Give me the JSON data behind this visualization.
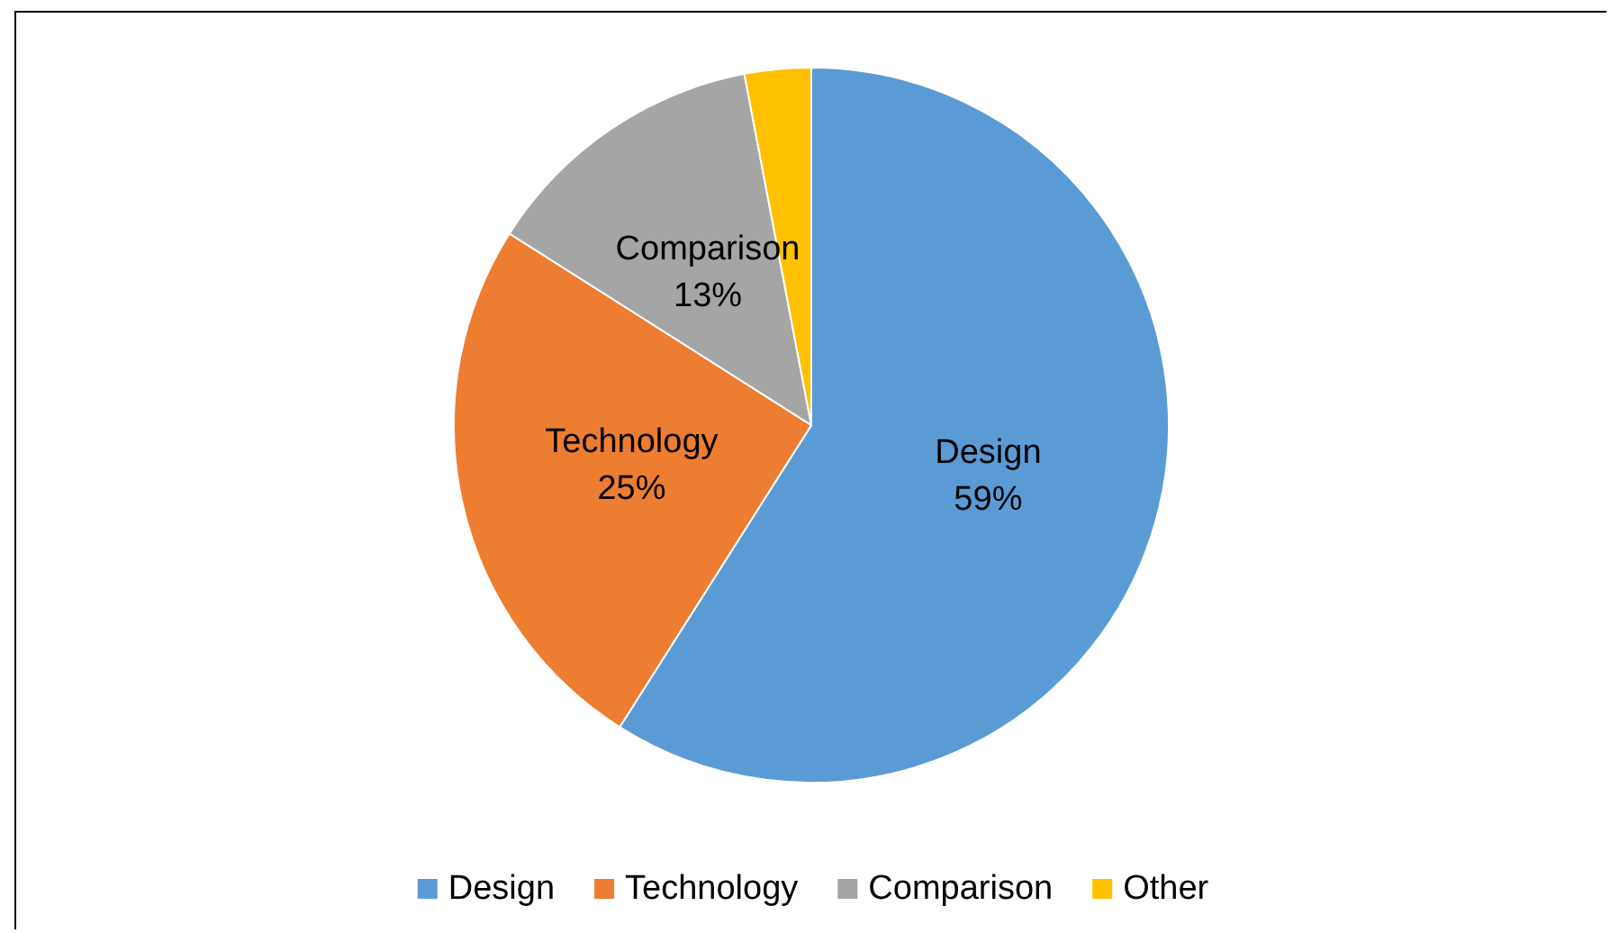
{
  "chart_data": {
    "type": "pie",
    "categories": [
      "Design",
      "Technology",
      "Comparison",
      "Other"
    ],
    "values": [
      59,
      25,
      13,
      3
    ],
    "colors": [
      "#5b9bd5",
      "#ed7d31",
      "#a5a5a5",
      "#ffc000"
    ],
    "value_labels": [
      "59%",
      "25%",
      "13%",
      null
    ],
    "legend": "bottom"
  }
}
